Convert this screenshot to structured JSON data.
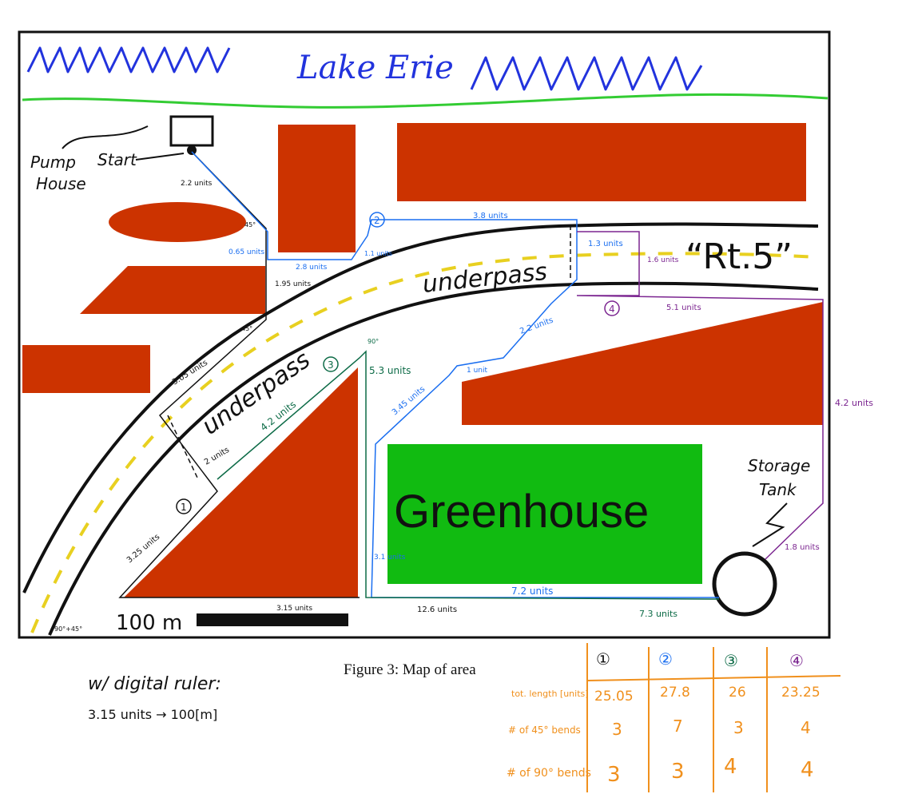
{
  "map": {
    "lake_label": "Lake Erie",
    "road_label": "“Rt.5”",
    "pump_label_1": "Pump",
    "pump_label_2": "House",
    "start_label": "Start",
    "underpass_1": "underpass",
    "underpass_2": "underpass",
    "greenhouse_label": "Greenhouse",
    "storage_label_1": "Storage",
    "storage_label_2": "Tank",
    "scale_label": "100 m",
    "scale_units": "3.15 units",
    "route_markers": [
      "1",
      "2",
      "3",
      "4"
    ]
  },
  "measurements": {
    "black": [
      "2.2 units",
      "1.95 units",
      "3.05 units",
      "2 units",
      "3.25 units",
      "12.6 units",
      "0.65 units",
      "2.8 units",
      "1.3 units"
    ],
    "blue": [
      "3.8 units",
      "1.1 units",
      "2.2 units",
      "1 unit",
      "3.45 units",
      "3.1 units",
      "7.2 units"
    ],
    "green": [
      "5.3 units",
      "4.2 units",
      "7.3 units"
    ],
    "purple": [
      "1.6 units",
      "5.1 units",
      "4.2 units",
      "1.8 units"
    ],
    "angles": [
      "45°",
      "90°",
      "90°+45°"
    ]
  },
  "caption": "Figure 3: Map of area",
  "ruler_note": {
    "line1": "w/ digital ruler:",
    "line2": "3.15 units → 100[m]"
  },
  "table": {
    "headers": [
      "①",
      "②",
      "③",
      "④"
    ],
    "header_colors": [
      "#111111",
      "#1a6ef0",
      "#0d6b47",
      "#7b2590"
    ],
    "rows": [
      {
        "label": "tot. length [units]",
        "values": [
          "25.05",
          "27.8",
          "26",
          "23.25"
        ]
      },
      {
        "label": "# of 45° bends",
        "values": [
          "3",
          "7",
          "3",
          "4"
        ]
      },
      {
        "label": "# of 90° bends",
        "values": [
          "3",
          "3",
          "4",
          "4"
        ]
      }
    ]
  },
  "colors": {
    "building": "#cc3300",
    "greenhouse": "#11bb11",
    "lake": "#2233dd",
    "shore": "#33cc33",
    "route1": "#111111",
    "route2": "#1a6ef0",
    "route3": "#0d6b47",
    "route4": "#7b2590",
    "table": "#f0901d"
  }
}
